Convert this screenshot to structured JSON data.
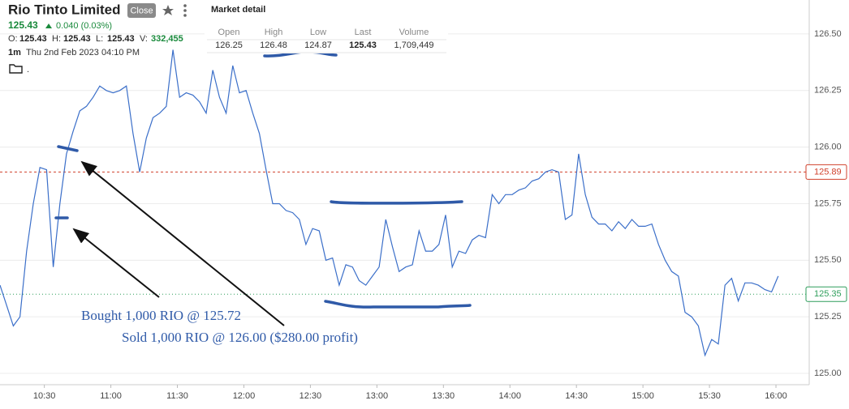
{
  "header": {
    "title": "Rio Tinto Limited",
    "button": "Close",
    "price": 125.43,
    "change": "0.040 (0.03%)",
    "ohlcv_labels": [
      "O:",
      "H:",
      "L:",
      "V:"
    ],
    "ohlcv_values": [
      125.43,
      125.43,
      125.43,
      "332,455"
    ],
    "interval": "1m",
    "datetime": "Thu 2nd Feb 2023 04:10 PM",
    "folder_label": "."
  },
  "market_detail": {
    "title": "Market detail",
    "columns": [
      "Open",
      "High",
      "Low",
      "Last",
      "Volume"
    ],
    "values": [
      126.25,
      126.48,
      124.87,
      125.43,
      "1,709,449"
    ]
  },
  "chart_data": {
    "type": "line",
    "color": "#3b6fc9",
    "x": [
      610,
      613,
      616,
      619,
      622,
      625,
      628,
      631,
      634,
      637,
      640,
      643,
      646,
      649,
      652,
      655,
      658,
      661,
      664,
      667,
      670,
      673,
      676,
      679,
      682,
      685,
      688,
      691,
      694,
      697,
      700,
      703,
      706,
      709,
      712,
      715,
      718,
      721,
      724,
      727,
      730,
      733,
      736,
      739,
      742,
      745,
      748,
      751,
      754,
      757,
      760,
      763,
      766,
      769,
      772,
      775,
      778,
      781,
      784,
      787,
      790,
      793,
      796,
      799,
      802,
      805,
      808,
      811,
      814,
      817,
      820,
      823,
      826,
      829,
      832,
      835,
      838,
      841,
      844,
      847,
      850,
      853,
      856,
      859,
      862,
      865,
      868,
      871,
      874,
      877,
      880,
      883,
      886,
      889,
      892,
      895,
      898,
      901,
      904,
      907,
      910,
      913,
      916,
      919,
      922,
      925,
      928,
      931,
      934,
      937,
      940,
      943,
      946,
      949,
      952,
      955,
      958,
      961
    ],
    "values": [
      125.39,
      125.3,
      125.21,
      125.25,
      125.54,
      125.75,
      125.91,
      125.9,
      125.47,
      125.75,
      125.97,
      126.07,
      126.16,
      126.18,
      126.22,
      126.27,
      126.25,
      126.24,
      126.25,
      126.27,
      126.06,
      125.89,
      126.04,
      126.13,
      126.15,
      126.18,
      126.43,
      126.22,
      126.24,
      126.23,
      126.2,
      126.15,
      126.34,
      126.22,
      126.15,
      126.36,
      126.24,
      126.25,
      126.15,
      126.06,
      125.9,
      125.75,
      125.75,
      125.72,
      125.71,
      125.68,
      125.57,
      125.64,
      125.63,
      125.5,
      125.51,
      125.39,
      125.48,
      125.47,
      125.41,
      125.39,
      125.43,
      125.47,
      125.68,
      125.56,
      125.45,
      125.47,
      125.48,
      125.63,
      125.54,
      125.54,
      125.57,
      125.7,
      125.47,
      125.54,
      125.53,
      125.59,
      125.61,
      125.6,
      125.79,
      125.75,
      125.79,
      125.79,
      125.81,
      125.82,
      125.85,
      125.86,
      125.89,
      125.9,
      125.89,
      125.68,
      125.7,
      125.97,
      125.79,
      125.69,
      125.66,
      125.66,
      125.63,
      125.67,
      125.64,
      125.68,
      125.65,
      125.65,
      125.66,
      125.57,
      125.5,
      125.45,
      125.43,
      125.27,
      125.25,
      125.21,
      125.08,
      125.15,
      125.13,
      125.39,
      125.42,
      125.32,
      125.4,
      125.4,
      125.39,
      125.37,
      125.36,
      125.43
    ],
    "xlim": [
      610,
      975
    ],
    "xticks": [
      {
        "value": 630,
        "label": "10:30"
      },
      {
        "value": 660,
        "label": "11:00"
      },
      {
        "value": 690,
        "label": "11:30"
      },
      {
        "value": 720,
        "label": "12:00"
      },
      {
        "value": 750,
        "label": "12:30"
      },
      {
        "value": 780,
        "label": "13:00"
      },
      {
        "value": 810,
        "label": "13:30"
      },
      {
        "value": 840,
        "label": "14:00"
      },
      {
        "value": 870,
        "label": "14:30"
      },
      {
        "value": 900,
        "label": "15:00"
      },
      {
        "value": 930,
        "label": "15:30"
      },
      {
        "value": 960,
        "label": "16:00"
      }
    ],
    "ylim": [
      124.95,
      126.65
    ],
    "yticks": [
      {
        "value": 125,
        "label": "125.00"
      },
      125.25,
      {
        "value": 125.5,
        "label": "125.50"
      },
      125.75,
      {
        "value": 126,
        "label": "126.00"
      },
      126.25,
      {
        "value": 126.5,
        "label": "126.50"
      }
    ],
    "grid": true,
    "ref_lines": [
      {
        "value": 125.89,
        "color": "#d0402b"
      },
      {
        "value": 125.35,
        "color": "#2e9e5b"
      }
    ],
    "annotations": [
      "Bought 1,000 RIO @ 125.72",
      "Sold 1,000 RIO @ 126.00 ($280.00 profit)"
    ]
  }
}
